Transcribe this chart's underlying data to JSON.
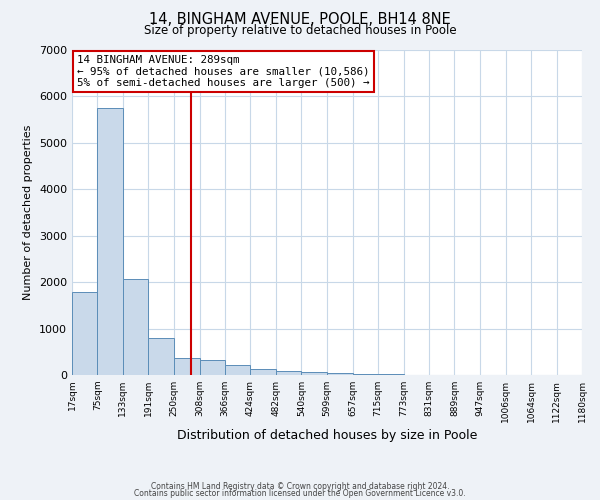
{
  "title_line1": "14, BINGHAM AVENUE, POOLE, BH14 8NE",
  "title_line2": "Size of property relative to detached houses in Poole",
  "xlabel": "Distribution of detached houses by size in Poole",
  "ylabel": "Number of detached properties",
  "bar_left_edges": [
    17,
    75,
    133,
    191,
    250,
    308,
    366,
    424,
    482,
    540,
    599,
    657,
    715,
    773,
    831,
    889,
    947,
    1006,
    1064,
    1122
  ],
  "bar_widths": [
    58,
    58,
    58,
    59,
    58,
    58,
    58,
    58,
    58,
    59,
    58,
    58,
    58,
    58,
    58,
    58,
    59,
    58,
    58,
    58
  ],
  "bar_heights": [
    1780,
    5750,
    2060,
    800,
    370,
    330,
    220,
    125,
    80,
    65,
    50,
    30,
    20,
    10,
    8,
    5,
    3,
    2,
    2,
    2
  ],
  "bar_color": "#c9d9ea",
  "bar_edge_color": "#5b8db8",
  "x_tick_labels": [
    "17sqm",
    "75sqm",
    "133sqm",
    "191sqm",
    "250sqm",
    "308sqm",
    "366sqm",
    "424sqm",
    "482sqm",
    "540sqm",
    "599sqm",
    "657sqm",
    "715sqm",
    "773sqm",
    "831sqm",
    "889sqm",
    "947sqm",
    "1006sqm",
    "1064sqm",
    "1122sqm",
    "1180sqm"
  ],
  "ylim": [
    0,
    7000
  ],
  "yticks": [
    0,
    1000,
    2000,
    3000,
    4000,
    5000,
    6000,
    7000
  ],
  "vline_x": 289,
  "vline_color": "#cc0000",
  "annotation_line1": "14 BINGHAM AVENUE: 289sqm",
  "annotation_line2": "← 95% of detached houses are smaller (10,586)",
  "annotation_line3": "5% of semi-detached houses are larger (500) →",
  "background_color": "#eef2f7",
  "plot_bg_color": "#ffffff",
  "grid_color": "#c8d8e8",
  "footer_line1": "Contains HM Land Registry data © Crown copyright and database right 2024.",
  "footer_line2": "Contains public sector information licensed under the Open Government Licence v3.0."
}
